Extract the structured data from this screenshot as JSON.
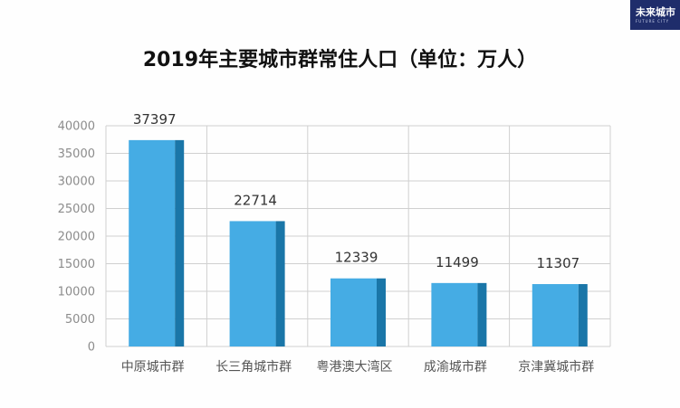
{
  "logo": {
    "brand": "未来城市",
    "sub": "FUTURE CITY"
  },
  "chart_data": {
    "type": "bar",
    "title": "2019年主要城市群常住人口（单位：万人）",
    "categories": [
      "中原城市群",
      "长三角城市群",
      "粤港澳大湾区",
      "成渝城市群",
      "京津冀城市群"
    ],
    "values": [
      37397,
      22714,
      12339,
      11499,
      11307
    ],
    "data_labels": [
      "37397",
      "22714",
      "12339",
      "11499",
      "11307"
    ],
    "ylim": [
      0,
      40000
    ],
    "yticks": [
      0,
      5000,
      10000,
      15000,
      20000,
      25000,
      30000,
      35000,
      40000
    ],
    "xlabel": "",
    "ylabel": "",
    "grid": true,
    "colors": {
      "bar_front": "#45ace4",
      "bar_side": "#1a76a8",
      "grid": "#d0d0d0"
    }
  }
}
